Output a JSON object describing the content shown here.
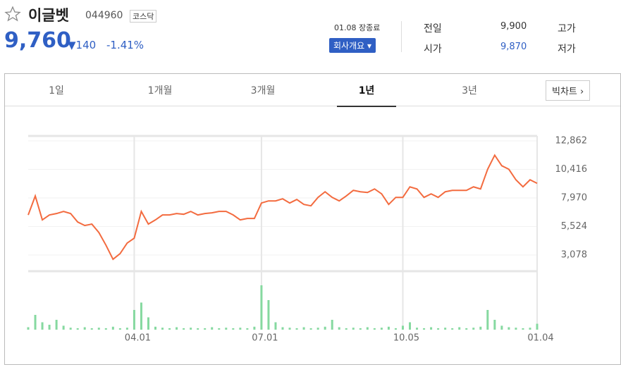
{
  "header": {
    "name": "이글벳",
    "code": "044960",
    "market": "코스닥",
    "price": "9,760",
    "change": "140",
    "rate": "-1.41%",
    "status": "01.08 장종료",
    "company_button": "회사개요",
    "info": [
      {
        "label": "전일",
        "value": "9,900"
      },
      {
        "label": "고가"
      },
      {
        "label": "시가",
        "value": "9,870"
      },
      {
        "label": "저가"
      }
    ]
  },
  "tabs": [
    "1일",
    "1개월",
    "3개월",
    "1년",
    "3년"
  ],
  "active_tab": 3,
  "big_chart": "빅차트",
  "chart_data": {
    "type": "line",
    "categories": [
      null,
      null,
      null,
      null,
      null,
      null,
      null,
      null,
      null,
      null,
      null,
      null,
      null,
      null,
      null,
      "04.01",
      null,
      null,
      null,
      null,
      null,
      null,
      null,
      null,
      null,
      null,
      null,
      null,
      null,
      null,
      null,
      null,
      null,
      "07.01",
      null,
      null,
      null,
      null,
      null,
      null,
      null,
      null,
      null,
      null,
      null,
      null,
      null,
      null,
      null,
      null,
      null,
      null,
      null,
      "10.05",
      null,
      null,
      null,
      null,
      null,
      null,
      null,
      null,
      null,
      null,
      null,
      null,
      null,
      null,
      null,
      null,
      null,
      null,
      "01.04"
    ],
    "series": [
      {
        "color": "#f36b3f",
        "values": [
          6512,
          8139,
          6090,
          6512,
          6633,
          6814,
          6633,
          5910,
          5608,
          5729,
          5006,
          3922,
          2716,
          3198,
          4102,
          4524,
          6814,
          5729,
          6090,
          6512,
          6512,
          6633,
          6572,
          6814,
          6512,
          6633,
          6693,
          6814,
          6814,
          6512,
          6090,
          6211,
          6211,
          7536,
          7717,
          7717,
          7898,
          7536,
          7838,
          7416,
          7296,
          8019,
          8501,
          8019,
          7717,
          8139,
          8621,
          8501,
          8440,
          8742,
          8320,
          7416,
          8019,
          8019,
          8922,
          8742,
          8019,
          8320,
          8019,
          8501,
          8621,
          8621,
          8621,
          8922,
          8742,
          10429,
          11634,
          10730,
          10429,
          9525,
          8922,
          9525,
          9224
        ]
      }
    ],
    "ylim": [
      1692,
      13284
    ],
    "yticks": [
      {
        "value": 3078,
        "label": "3,078"
      },
      {
        "value": 5524,
        "label": "5,524"
      },
      {
        "value": 7970,
        "label": "7,970"
      },
      {
        "value": 10416,
        "label": "10,416"
      },
      {
        "value": 12862,
        "label": "12,862"
      }
    ],
    "volume": {
      "color": "#86d9a0",
      "ylim": [
        0,
        100
      ],
      "values": [
        5,
        30,
        15,
        10,
        20,
        8,
        4,
        3,
        5,
        3,
        4,
        3,
        6,
        3,
        4,
        40,
        55,
        25,
        6,
        4,
        3,
        5,
        3,
        4,
        3,
        3,
        5,
        3,
        4,
        3,
        4,
        3,
        6,
        90,
        60,
        15,
        5,
        4,
        3,
        5,
        3,
        4,
        6,
        20,
        5,
        3,
        4,
        3,
        5,
        3,
        4,
        6,
        3,
        8,
        15,
        4,
        3,
        5,
        3,
        4,
        3,
        5,
        3,
        4,
        6,
        40,
        20,
        8,
        5,
        4,
        3,
        4,
        12
      ]
    }
  }
}
